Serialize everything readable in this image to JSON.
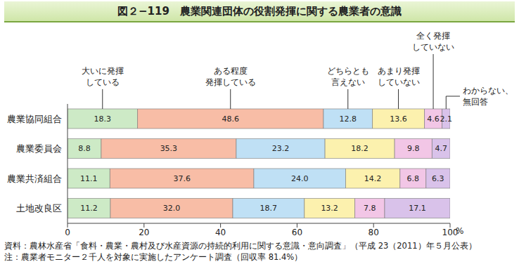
{
  "chart_data": {
    "type": "bar",
    "orientation": "horizontal",
    "stacked": true,
    "data_labels": true,
    "grid": false,
    "title": "図２−119　農業関連団体の役割発揮に関する農業者の意識",
    "xlabel": "%",
    "categories": [
      "農業協同組合",
      "農業委員会",
      "農業共済組合",
      "土地改良区"
    ],
    "xlim": [
      0,
      100
    ],
    "xticks": [
      0,
      20,
      40,
      60,
      80,
      100
    ],
    "series": [
      {
        "name": "大いに発揮\nしている",
        "color": "#cdeac6",
        "values": [
          18.3,
          8.8,
          11.1,
          11.2
        ]
      },
      {
        "name": "ある程度\n発揮している",
        "color": "#f8bda6",
        "values": [
          48.6,
          35.3,
          37.6,
          32.0
        ],
        "value_labels": [
          "48.6",
          "35.3",
          "37.6",
          "32.0"
        ]
      },
      {
        "name": "どちらとも\n言えない",
        "color": "#bfe0f5",
        "values": [
          12.8,
          23.2,
          24.0,
          18.7
        ],
        "value_labels": [
          "12.8",
          "23.2",
          "24.0",
          "18.7"
        ]
      },
      {
        "name": "あまり発揮\nしていない",
        "color": "#fcf1ae",
        "values": [
          13.6,
          18.2,
          14.2,
          13.2
        ]
      },
      {
        "name": "全く発揮\nしていない",
        "color": "#f2c6e6",
        "values": [
          4.6,
          9.8,
          6.8,
          7.8
        ]
      },
      {
        "name": "わからない、\n無回答",
        "color": "#d9c2ea",
        "values": [
          2.1,
          4.7,
          6.3,
          17.1
        ]
      }
    ],
    "notes": [
      "資料：農林水産省「食料・農業・農村及び水産資源の持続的利用に関する意識・意向調査」（平成 23（2011）年５月公表）",
      "注：農業者モニター２千人を対象に実施したアンケート調査（回収率 81.4%）"
    ]
  }
}
